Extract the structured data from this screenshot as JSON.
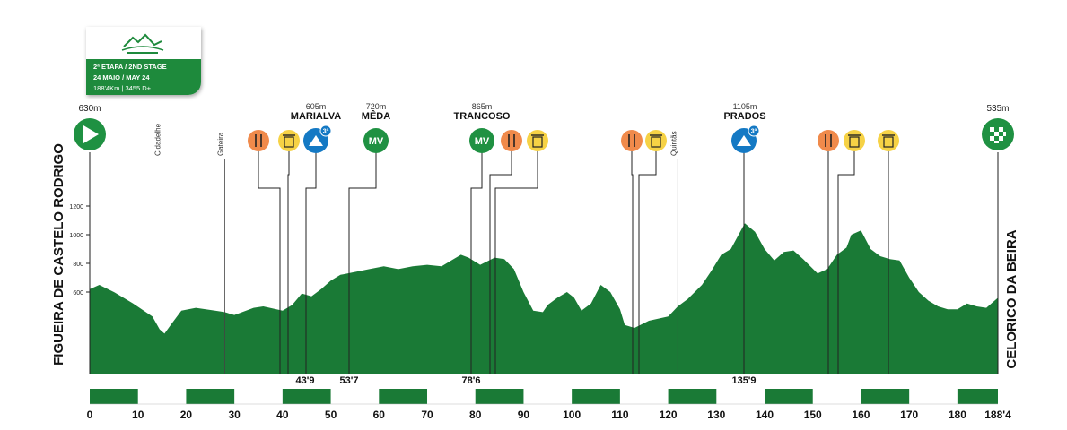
{
  "card": {
    "line1": "2ª ETAPA / 2ND STAGE",
    "line2": "24 MAIO / MAY 24",
    "line3": "188'4Km | 3455 D+"
  },
  "start": {
    "name": "FIGUEIRA DE CASTELO RODRIGO",
    "elev": "630m"
  },
  "finish": {
    "name": "CELORICO DA BEIRA",
    "elev": "535m"
  },
  "places": [
    {
      "km": 15,
      "name": "Cidadelhe"
    },
    {
      "km": 28,
      "name": "Gateira"
    },
    {
      "km": 122,
      "name": "Quintãs"
    }
  ],
  "climbs": [
    {
      "label": "MARIALVA",
      "elev": "605m"
    },
    {
      "label": "MÊDA",
      "elev": "720m"
    },
    {
      "label": "TRANCOSO",
      "elev": "865m"
    },
    {
      "label": "PRADOS",
      "elev": "1105m"
    }
  ],
  "markers_km": [
    "43'9",
    "53'7",
    "78'6",
    "135'9"
  ],
  "icons": [
    {
      "type": "food-icon",
      "color": "#f08a4b"
    },
    {
      "type": "trash-icon",
      "color": "#f6d245"
    },
    {
      "type": "mountain-icon",
      "color": "#1479c4",
      "badge": "3ª"
    },
    {
      "type": "mv-icon",
      "color": "#1f9142",
      "text": "MV"
    },
    {
      "type": "mv-icon",
      "color": "#1f9142",
      "text": "MV"
    },
    {
      "type": "food-icon",
      "color": "#f08a4b"
    },
    {
      "type": "trash-icon",
      "color": "#f6d245"
    },
    {
      "type": "food-icon",
      "color": "#f08a4b"
    },
    {
      "type": "trash-icon",
      "color": "#f6d245"
    },
    {
      "type": "mountain-icon",
      "color": "#1479c4",
      "badge": "3ª"
    },
    {
      "type": "food-icon",
      "color": "#f08a4b"
    },
    {
      "type": "trash-icon",
      "color": "#f6d245"
    },
    {
      "type": "trash-icon",
      "color": "#f6d245"
    }
  ],
  "colors": {
    "terrain": "#1a7a36",
    "food": "#f08a4b",
    "waste": "#f6d245",
    "climb": "#1479c4",
    "mv": "#1f9142"
  },
  "chart_data": {
    "type": "area",
    "title": "",
    "xlabel": "",
    "ylabel": "",
    "xlim": [
      0,
      188.4
    ],
    "y_ticks": [
      600,
      800,
      1000,
      1200
    ],
    "x_ticks": [
      "0",
      "10",
      "20",
      "30",
      "40",
      "50",
      "60",
      "70",
      "80",
      "90",
      "100",
      "110",
      "120",
      "130",
      "140",
      "150",
      "160",
      "170",
      "180",
      "188'4"
    ],
    "profile": {
      "x": [
        0,
        2,
        5,
        9,
        13,
        14.5,
        15.5,
        17,
        19,
        22,
        26,
        28,
        30,
        34,
        36,
        40,
        42,
        44,
        46,
        48,
        50,
        52,
        55,
        58,
        61,
        64,
        67,
        70,
        73,
        75,
        77,
        78.6,
        81,
        84,
        86,
        88,
        90,
        92,
        94,
        95,
        97,
        99,
        100.5,
        102,
        104,
        106,
        108,
        110,
        111,
        113,
        116,
        120,
        122,
        124,
        127,
        129,
        131,
        133,
        135.9,
        138,
        140,
        142,
        144,
        146,
        148,
        151,
        153,
        155,
        157,
        158,
        160,
        162,
        164,
        166,
        168,
        170,
        172,
        174,
        176,
        178,
        180,
        182,
        184,
        186,
        188.4
      ],
      "y": [
        620,
        650,
        600,
        520,
        430,
        340,
        310,
        380,
        470,
        490,
        470,
        460,
        440,
        490,
        500,
        470,
        510,
        590,
        570,
        620,
        680,
        720,
        740,
        760,
        780,
        760,
        780,
        790,
        780,
        820,
        860,
        840,
        790,
        840,
        830,
        760,
        600,
        470,
        460,
        510,
        560,
        600,
        560,
        470,
        520,
        650,
        600,
        480,
        370,
        350,
        400,
        430,
        500,
        550,
        650,
        750,
        860,
        900,
        1080,
        1020,
        900,
        820,
        880,
        890,
        830,
        730,
        760,
        860,
        910,
        1000,
        1030,
        900,
        850,
        830,
        820,
        700,
        600,
        540,
        500,
        480,
        480,
        520,
        500,
        490,
        560
      ]
    }
  }
}
